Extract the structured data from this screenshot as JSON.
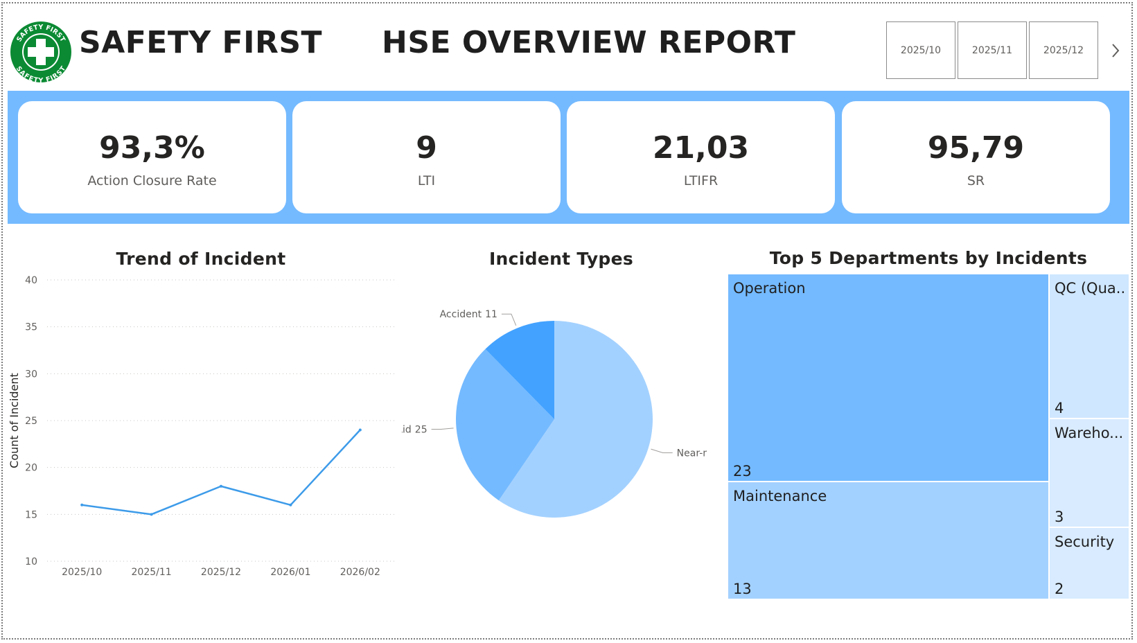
{
  "header": {
    "brand": "SAFETY FIRST",
    "logo_text": "SAFETY FIRST",
    "report_title": "HSE OVERVIEW REPORT"
  },
  "slicer": {
    "items": [
      "2025/10",
      "2025/11",
      "2025/12"
    ],
    "next_icon": "chevron-right-icon"
  },
  "kpis": [
    {
      "value": "93,3%",
      "label": "Action Closure Rate"
    },
    {
      "value": "9",
      "label": "LTI"
    },
    {
      "value": "21,03",
      "label": "LTIFR"
    },
    {
      "value": "95,79",
      "label": "SR"
    }
  ],
  "colors": {
    "band": "#74baff",
    "line": "#3d9be9",
    "pie": [
      "#a3d1ff",
      "#74baff",
      "#43a2ff"
    ],
    "treemap": [
      "#74baff",
      "#a3d1ff",
      "#cfe7ff",
      "#d8ebff"
    ],
    "logo_green": "#0b8a33"
  },
  "chart_data": [
    {
      "type": "line",
      "title": "Trend of Incident",
      "xlabel": "",
      "ylabel": "Count of Incident",
      "categories": [
        "2025/10",
        "2025/11",
        "2025/12",
        "2026/01",
        "2026/02"
      ],
      "values": [
        16,
        15,
        18,
        16,
        24
      ],
      "ylim": [
        10,
        40
      ],
      "yticks": [
        10,
        15,
        20,
        25,
        30,
        35,
        40
      ],
      "grid": true
    },
    {
      "type": "pie",
      "title": "Incident Types",
      "slices": [
        {
          "label": "Near-miss",
          "value": 53
        },
        {
          "label": "First Aid",
          "value": 25
        },
        {
          "label": "Accident",
          "value": 11
        }
      ]
    },
    {
      "type": "treemap",
      "title": "Top 5 Departments by Incidents",
      "items": [
        {
          "label": "Operation",
          "value": 23
        },
        {
          "label": "Maintenance",
          "value": 13
        },
        {
          "label": "QC (Qua...",
          "value": 4
        },
        {
          "label": "Wareho...",
          "value": 3
        },
        {
          "label": "Security",
          "value": 2
        }
      ]
    }
  ]
}
